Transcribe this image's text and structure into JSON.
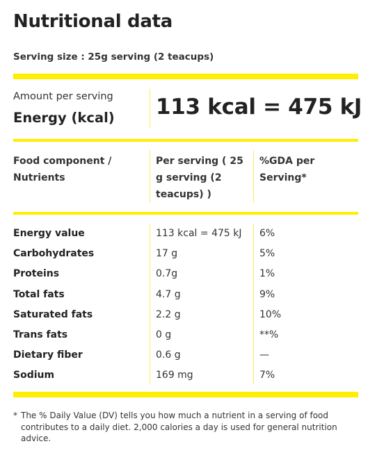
{
  "title": "Nutritional data",
  "serving_size": "Serving size : 25g serving (2 teacups)",
  "energy_box": {
    "amount_label": "Amount per serving",
    "energy_label": "Energy (kcal)",
    "energy_value": "113 kcal = 475 kJ"
  },
  "table": {
    "headers": {
      "component": "Food component / Nutrients",
      "per_serving": "Per serving ( 25 g serving (2 teacups) )",
      "gda": "%GDA per Serving*"
    },
    "rows": [
      {
        "name": "Energy value",
        "per": "113 kcal = 475 kJ",
        "gda": "6%"
      },
      {
        "name": "Carbohydrates",
        "per": "17 g",
        "gda": "5%"
      },
      {
        "name": "Proteins",
        "per": "0.7g",
        "gda": "1%"
      },
      {
        "name": "Total fats",
        "per": "4.7 g",
        "gda": "9%"
      },
      {
        "name": "Saturated fats",
        "per": "2.2 g",
        "gda": "10%"
      },
      {
        "name": "Trans fats",
        "per": "0 g",
        "gda": "**%"
      },
      {
        "name": "Dietary fiber",
        "per": "0.6 g",
        "gda": "—"
      },
      {
        "name": "Sodium",
        "per": "169 mg",
        "gda": "7%"
      }
    ]
  },
  "footnote": {
    "marker": "*",
    "text": "The % Daily Value (DV) tells you how much a nutrient in a serving of food contributes to a daily diet. 2,000 calories a day is used for general nutrition advice."
  },
  "colors": {
    "accent_yellow": "#ffee00",
    "text": "#222222"
  }
}
